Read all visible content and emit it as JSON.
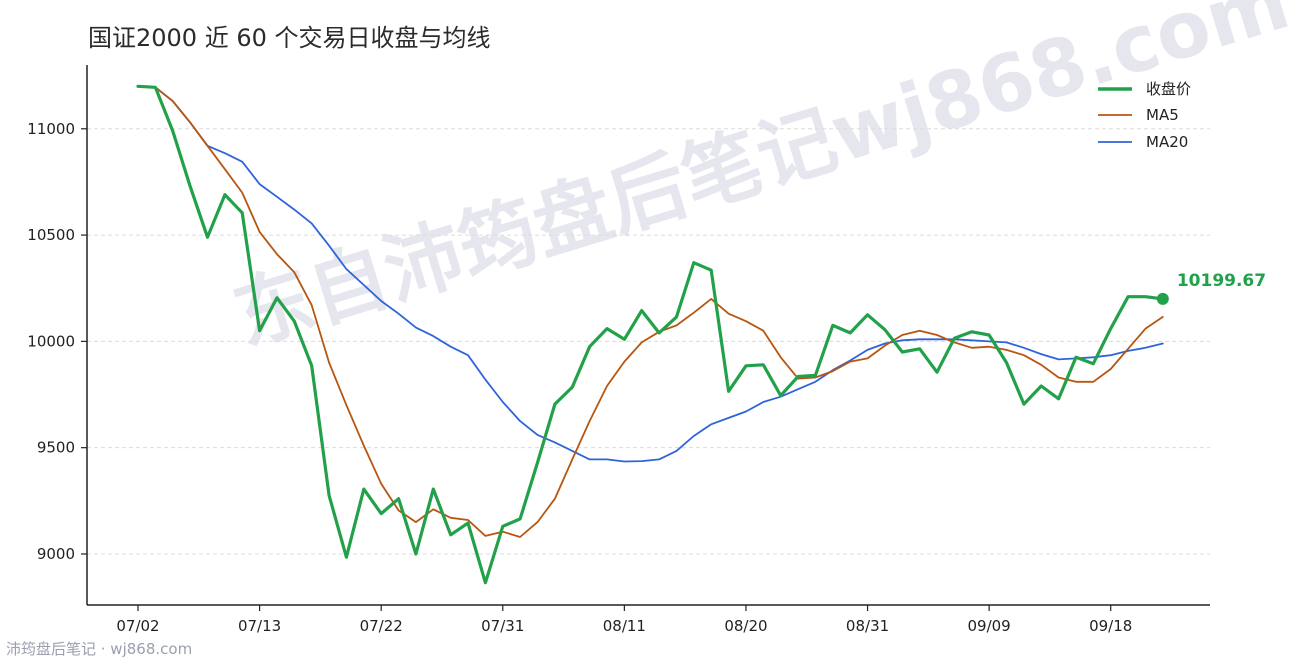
{
  "title": "国证2000 近 60 个交易日收盘与均线",
  "watermark": "东自沛筠盘后笔记wj868.com",
  "footer": "沛筠盘后笔记 · wj868.com",
  "colors": {
    "close": "#22a14a",
    "ma5": "#b8560f",
    "ma20": "#2e64d9",
    "grid": "#dcdcdc",
    "axis": "#222222"
  },
  "chart_data": {
    "type": "line",
    "title": "国证2000 近 60 个交易日收盘与均线",
    "xlabel": "",
    "ylabel": "",
    "ylim": [
      8760,
      11300
    ],
    "yticks": [
      9000,
      9500,
      10000,
      10500,
      11000
    ],
    "xticks": [
      {
        "index": 0,
        "label": "07/02"
      },
      {
        "index": 7,
        "label": "07/13"
      },
      {
        "index": 14,
        "label": "07/22"
      },
      {
        "index": 21,
        "label": "07/31"
      },
      {
        "index": 28,
        "label": "08/11"
      },
      {
        "index": 35,
        "label": "08/20"
      },
      {
        "index": 42,
        "label": "08/31"
      },
      {
        "index": 49,
        "label": "09/09"
      },
      {
        "index": 56,
        "label": "09/18"
      }
    ],
    "grid": "horizontal dashed",
    "legend_position": "top-right",
    "series": [
      {
        "name": "收盘价",
        "values": [
          11200,
          11195,
          10990,
          10730,
          10490,
          10690,
          10605,
          10050,
          10205,
          10095,
          9885,
          9275,
          8985,
          9305,
          9190,
          9260,
          9000,
          9305,
          9090,
          9145,
          8865,
          9130,
          9165,
          9430,
          9705,
          9785,
          9975,
          10060,
          10010,
          10145,
          10040,
          10115,
          10370,
          10335,
          9765,
          9885,
          9890,
          9745,
          9835,
          9840,
          10075,
          10040,
          10125,
          10055,
          9950,
          9965,
          9855,
          10015,
          10045,
          10030,
          9900,
          9705,
          9790,
          9730,
          9925,
          9895,
          10060,
          10210,
          10210,
          10199.67
        ]
      },
      {
        "name": "MA5",
        "values": [
          11200,
          11195,
          11130,
          11030,
          10920,
          10810,
          10700,
          10515,
          10410,
          10325,
          10170,
          9900,
          9700,
          9510,
          9330,
          9205,
          9150,
          9210,
          9170,
          9160,
          9085,
          9105,
          9080,
          9150,
          9260,
          9445,
          9625,
          9790,
          9905,
          9995,
          10045,
          10075,
          10135,
          10200,
          10130,
          10095,
          10050,
          9925,
          9825,
          9830,
          9860,
          9905,
          9920,
          9980,
          10030,
          10050,
          10030,
          9995,
          9970,
          9975,
          9960,
          9935,
          9890,
          9830,
          9810,
          9810,
          9870,
          9965,
          10060,
          10115
        ]
      },
      {
        "name": "MA20",
        "values": [
          11200,
          11195,
          11130,
          11030,
          10920,
          10885,
          10845,
          10740,
          10680,
          10620,
          10555,
          10450,
          10340,
          10265,
          10190,
          10130,
          10065,
          10025,
          9975,
          9935,
          9820,
          9715,
          9625,
          9560,
          9525,
          9485,
          9445,
          9445,
          9435,
          9437,
          9445,
          9485,
          9555,
          9610,
          9640,
          9670,
          9715,
          9740,
          9775,
          9810,
          9865,
          9910,
          9960,
          9990,
          10005,
          10010,
          10010,
          10010,
          10005,
          10000,
          9995,
          9970,
          9940,
          9915,
          9920,
          9925,
          9935,
          9955,
          9970,
          9990
        ]
      }
    ],
    "annotations": [
      {
        "text": "10199.67",
        "series": "收盘价",
        "index": 59
      }
    ]
  }
}
